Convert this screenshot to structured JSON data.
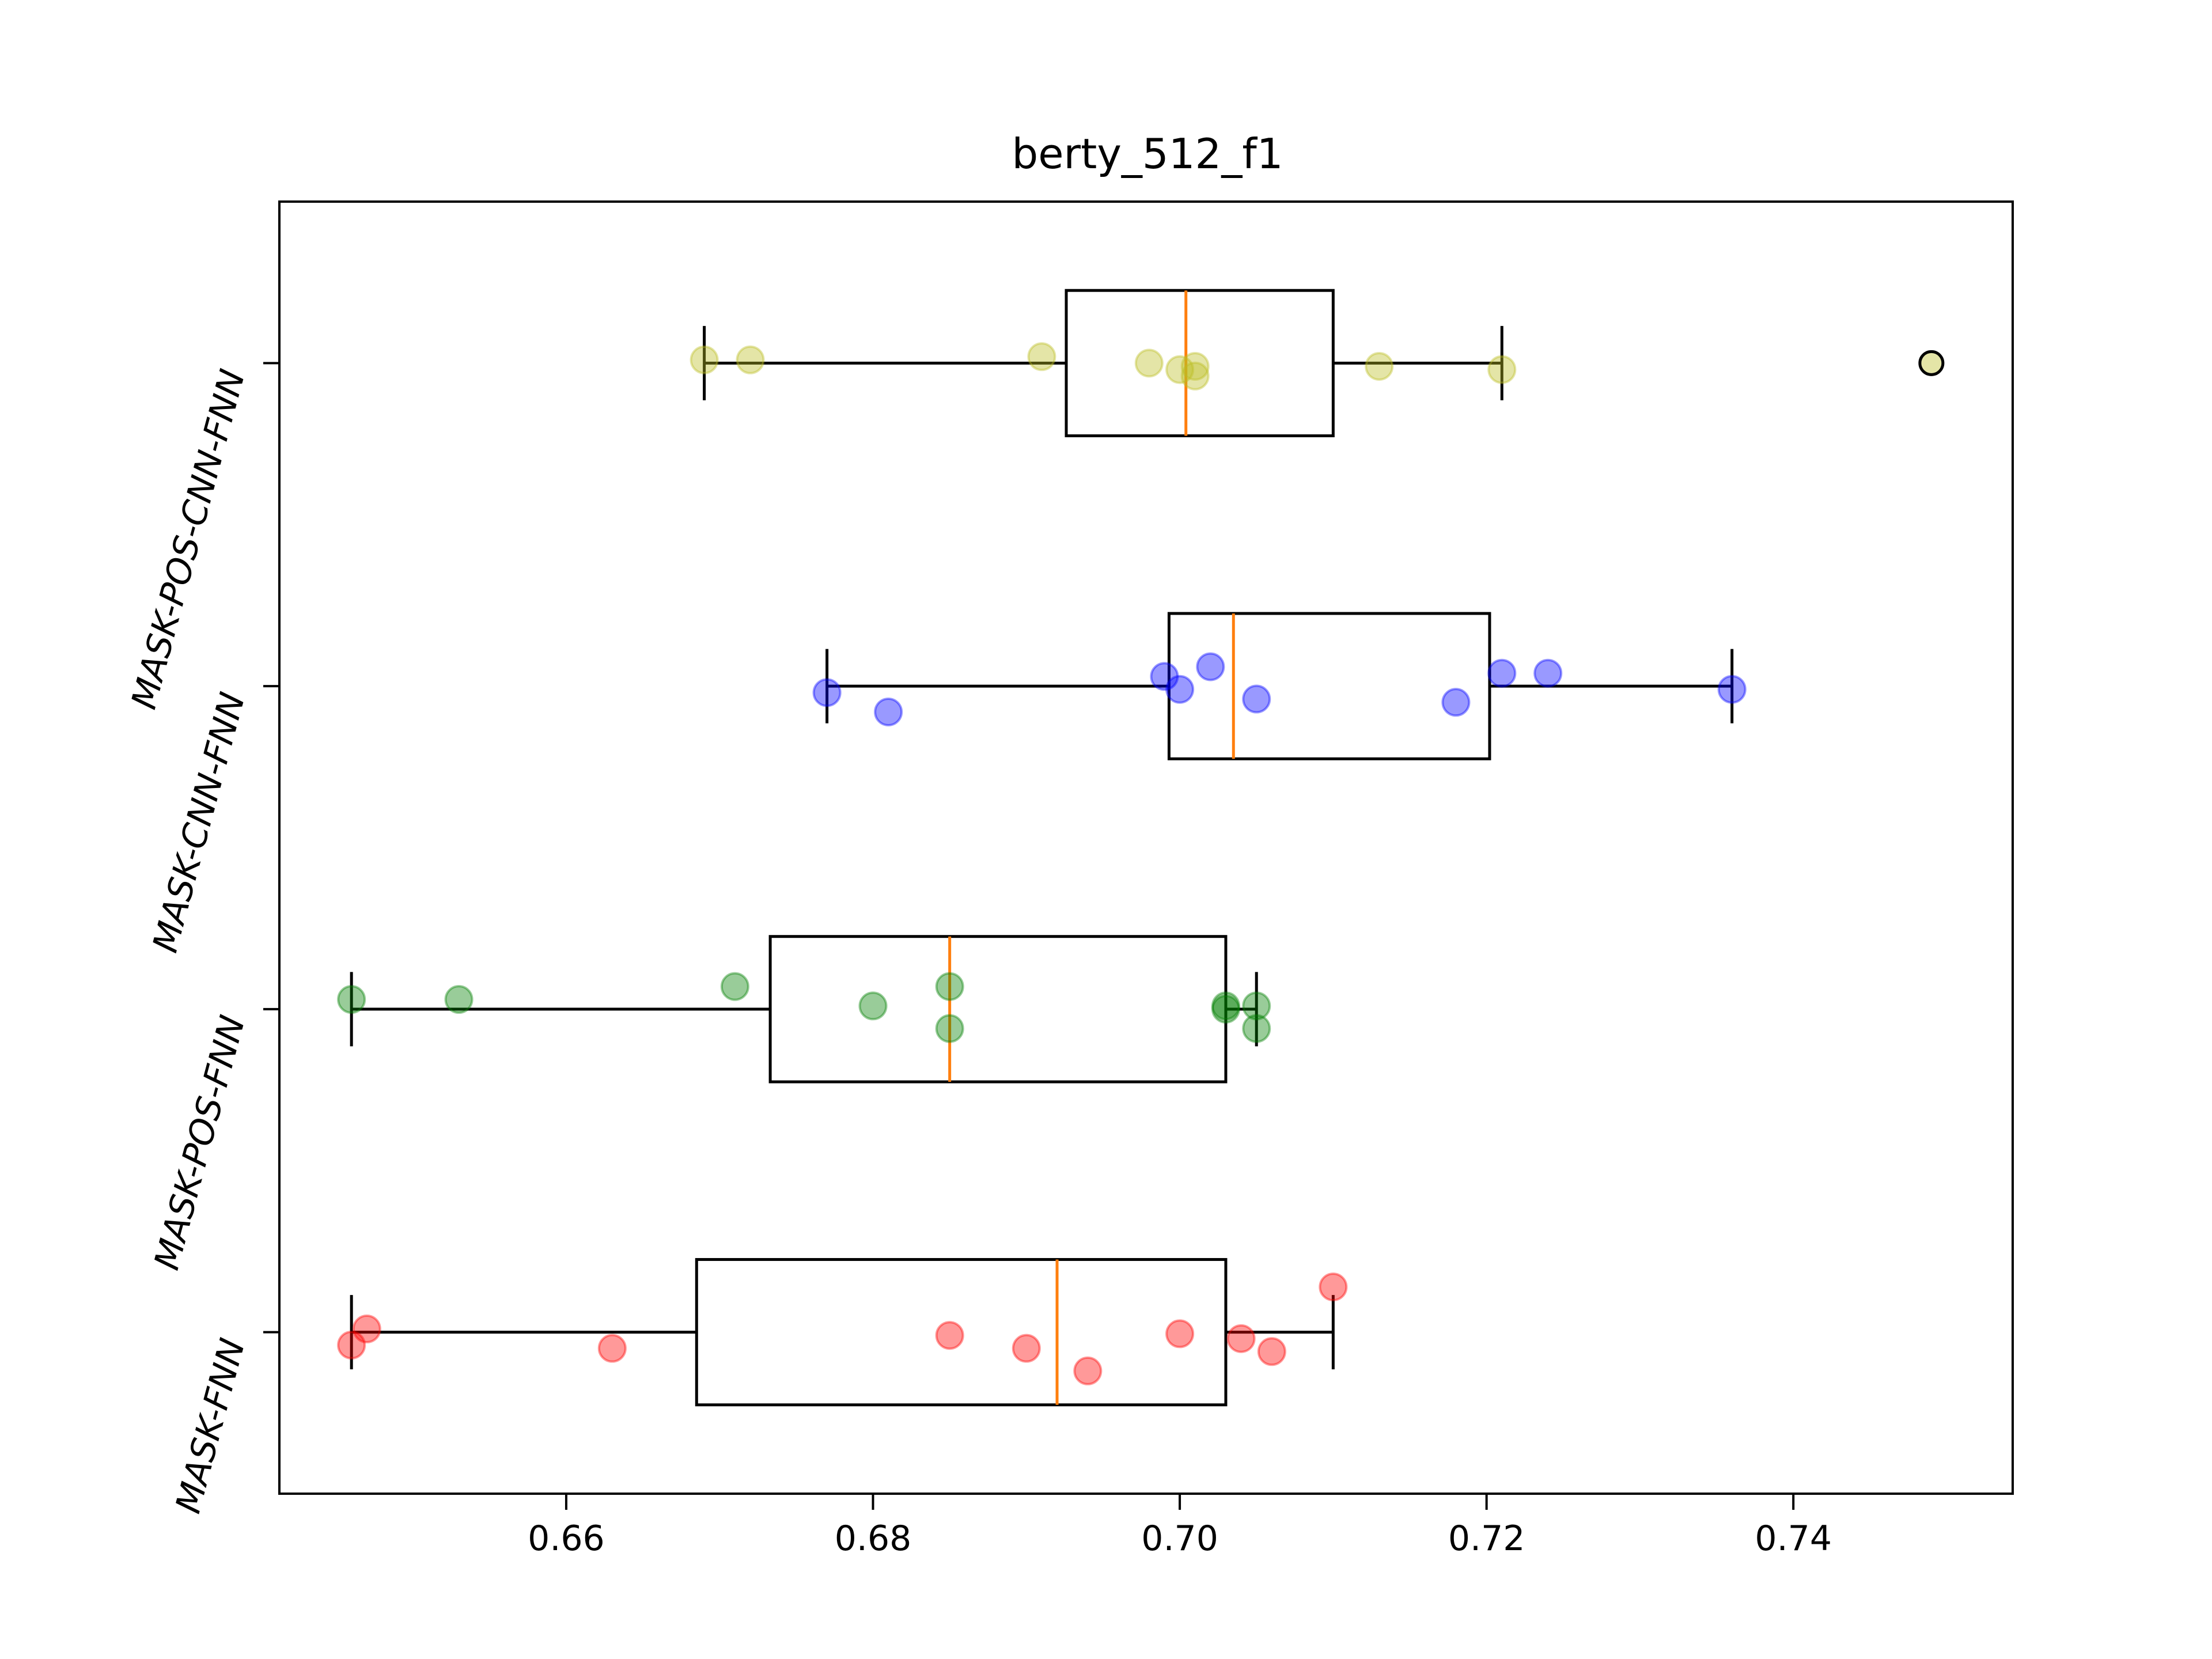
{
  "chart_data": {
    "type": "box",
    "orientation": "horizontal",
    "title": "berty_512_f1",
    "xlabel": "",
    "ylabel": "",
    "xlim": [
      0.6413,
      0.7543
    ],
    "x_ticks": [
      0.66,
      0.68,
      0.7,
      0.72,
      0.74
    ],
    "x_tick_labels": [
      "0.66",
      "0.68",
      "0.70",
      "0.72",
      "0.74"
    ],
    "grid": false,
    "median_color": "#ff7f0e",
    "series": [
      {
        "name": "MASK-FNN",
        "color": "#ff0000",
        "whisker_low": 0.646,
        "q1": 0.6685,
        "median": 0.692,
        "q3": 0.703,
        "whisker_high": 0.71,
        "outliers": [],
        "points": [
          {
            "x": 0.646,
            "jitter": -0.04
          },
          {
            "x": 0.647,
            "jitter": 0.01
          },
          {
            "x": 0.663,
            "jitter": -0.05
          },
          {
            "x": 0.685,
            "jitter": -0.01
          },
          {
            "x": 0.69,
            "jitter": -0.05
          },
          {
            "x": 0.694,
            "jitter": -0.12
          },
          {
            "x": 0.7,
            "jitter": -0.005
          },
          {
            "x": 0.704,
            "jitter": -0.02
          },
          {
            "x": 0.706,
            "jitter": -0.06
          },
          {
            "x": 0.71,
            "jitter": 0.14
          }
        ]
      },
      {
        "name": "MASK-POS-FNN",
        "color": "#008000",
        "whisker_low": 0.646,
        "q1": 0.6733,
        "median": 0.685,
        "q3": 0.703,
        "whisker_high": 0.705,
        "outliers": [],
        "points": [
          {
            "x": 0.646,
            "jitter": 0.03
          },
          {
            "x": 0.653,
            "jitter": 0.03
          },
          {
            "x": 0.671,
            "jitter": 0.07
          },
          {
            "x": 0.68,
            "jitter": 0.01
          },
          {
            "x": 0.685,
            "jitter": 0.07
          },
          {
            "x": 0.685,
            "jitter": -0.06
          },
          {
            "x": 0.703,
            "jitter": 0.0
          },
          {
            "x": 0.703,
            "jitter": 0.01
          },
          {
            "x": 0.705,
            "jitter": 0.01
          },
          {
            "x": 0.705,
            "jitter": -0.06
          }
        ]
      },
      {
        "name": "MASK-CNN-FNN",
        "color": "#0000ff",
        "whisker_low": 0.677,
        "q1": 0.6993,
        "median": 0.7035,
        "q3": 0.7202,
        "whisker_high": 0.736,
        "outliers": [],
        "points": [
          {
            "x": 0.677,
            "jitter": -0.02
          },
          {
            "x": 0.681,
            "jitter": -0.08
          },
          {
            "x": 0.699,
            "jitter": 0.03
          },
          {
            "x": 0.7,
            "jitter": -0.01
          },
          {
            "x": 0.702,
            "jitter": 0.06
          },
          {
            "x": 0.705,
            "jitter": -0.04
          },
          {
            "x": 0.718,
            "jitter": -0.05
          },
          {
            "x": 0.721,
            "jitter": 0.04
          },
          {
            "x": 0.724,
            "jitter": 0.04
          },
          {
            "x": 0.736,
            "jitter": -0.01
          }
        ]
      },
      {
        "name": "MASK-POS-CNN-FNN",
        "color": "#bcbd22",
        "whisker_low": 0.669,
        "q1": 0.6926,
        "median": 0.7004,
        "q3": 0.71,
        "whisker_high": 0.721,
        "outliers": [
          0.749
        ],
        "points": [
          {
            "x": 0.669,
            "jitter": 0.01
          },
          {
            "x": 0.672,
            "jitter": 0.01
          },
          {
            "x": 0.691,
            "jitter": 0.02
          },
          {
            "x": 0.698,
            "jitter": 0.0
          },
          {
            "x": 0.7,
            "jitter": -0.02
          },
          {
            "x": 0.701,
            "jitter": -0.01
          },
          {
            "x": 0.701,
            "jitter": -0.04
          },
          {
            "x": 0.713,
            "jitter": -0.01
          },
          {
            "x": 0.721,
            "jitter": -0.02
          }
        ]
      }
    ]
  }
}
